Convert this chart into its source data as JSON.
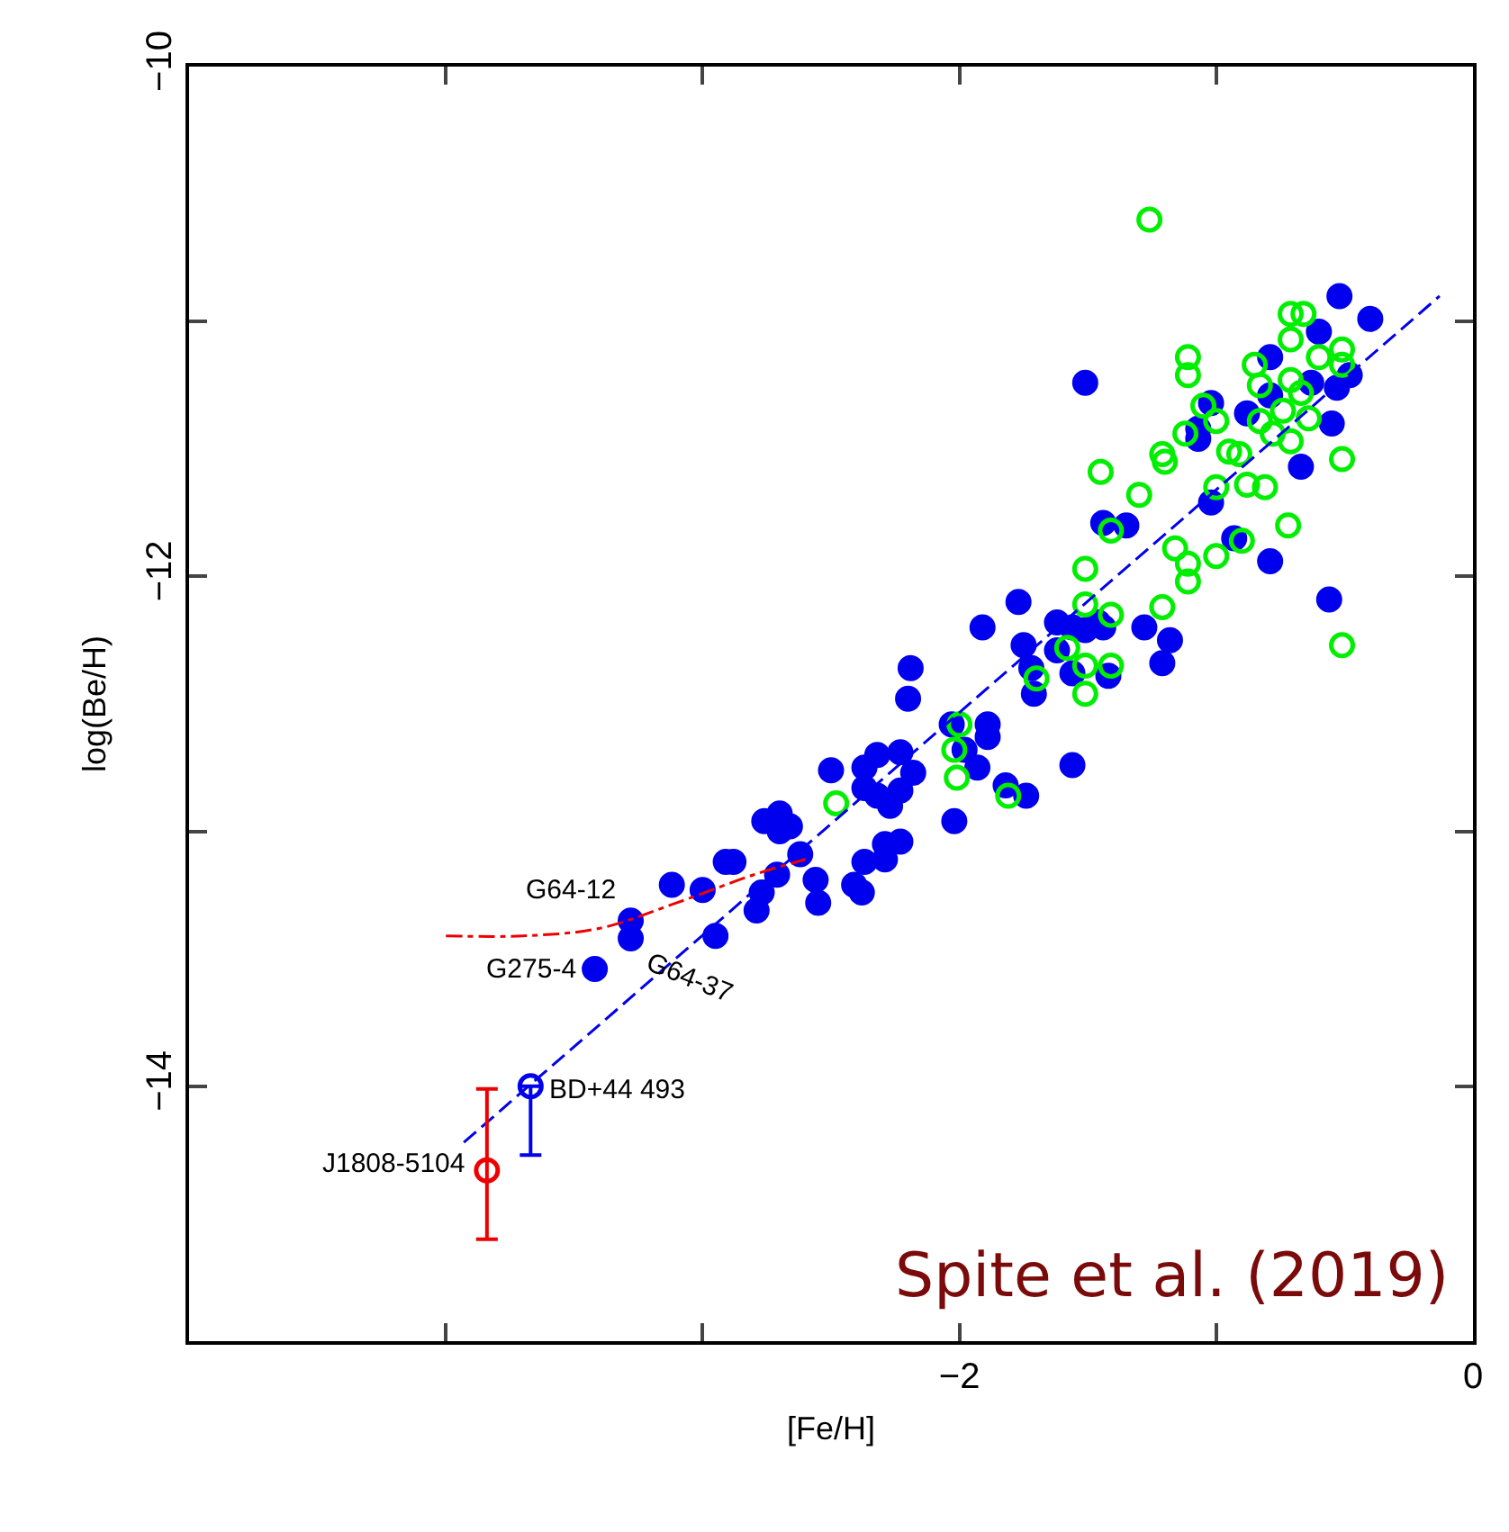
{
  "chart_data": {
    "type": "scatter",
    "xlabel": "[Fe/H]",
    "ylabel": "log(Be/H)",
    "xlim": [
      -5,
      0
    ],
    "xticks": [
      {
        "value": -4,
        "label": null
      },
      {
        "value": -3,
        "label": null
      },
      -2,
      {
        "value": -1,
        "label": null
      },
      0
    ],
    "ylim": [
      -15,
      -10
    ],
    "yticks": [
      -14,
      {
        "value": -13,
        "label": null
      },
      -12,
      {
        "value": -11,
        "label": null
      },
      -10
    ],
    "grid": false,
    "series": [
      {
        "color": "#0000ee",
        "marker": "circle",
        "x": [
          -2.2,
          -2.03,
          -1.89,
          -1.89,
          -2.5,
          -2.32,
          -2.37,
          -2.23,
          -2.18,
          -2.37,
          -2.32,
          -2.23,
          -2.27,
          -1.98,
          -1.93,
          -2.02,
          -1.82,
          -2.76,
          -2.7,
          -2.7,
          -2.66,
          -2.23,
          -2.29,
          -2.29,
          -2.37,
          -2.62,
          -2.56,
          -2.55,
          -2.41,
          -2.38,
          -2.71,
          -2.77,
          -2.79,
          -2.91,
          -2.88,
          -3.0,
          -3.12,
          -3.28,
          -3.28,
          -2.95,
          -3.42,
          -1.44,
          -1.35,
          -1.77,
          -1.91,
          -1.62,
          -1.56,
          -1.46,
          -1.51,
          -1.44,
          -1.28,
          -1.18,
          -1.21,
          -1.75,
          -1.62,
          -1.72,
          -1.56,
          -1.42,
          -1.71,
          -2.19,
          -1.56,
          -1.74,
          -1.51,
          -0.52,
          -0.4,
          -0.6,
          -0.79,
          -0.63,
          -0.53,
          -0.48,
          -0.79,
          -1.02,
          -0.88,
          -1.07,
          -1.07,
          -0.55,
          -0.67,
          -1.02,
          -0.93,
          -0.79,
          -0.56
        ],
        "values": [
          -12.48,
          -12.58,
          -12.58,
          -12.63,
          -12.76,
          -12.7,
          -12.75,
          -12.69,
          -12.77,
          -12.83,
          -12.86,
          -12.84,
          -12.9,
          -12.68,
          -12.75,
          -12.96,
          -12.82,
          -12.96,
          -12.93,
          -13.0,
          -12.98,
          -13.04,
          -13.05,
          -13.11,
          -13.12,
          -13.09,
          -13.19,
          -13.28,
          -13.21,
          -13.24,
          -13.17,
          -13.24,
          -13.31,
          -13.12,
          -13.12,
          -13.23,
          -13.21,
          -13.35,
          -13.42,
          -13.41,
          -13.54,
          -11.79,
          -11.8,
          -12.1,
          -12.2,
          -12.18,
          -12.2,
          -12.18,
          -12.21,
          -12.2,
          -12.2,
          -12.25,
          -12.34,
          -12.27,
          -12.29,
          -12.36,
          -12.38,
          -12.39,
          -12.46,
          -12.36,
          -12.74,
          -12.86,
          -11.24,
          -10.9,
          -10.99,
          -11.04,
          -11.14,
          -11.24,
          -11.26,
          -11.21,
          -11.29,
          -11.32,
          -11.36,
          -11.42,
          -11.46,
          -11.4,
          -11.57,
          -11.71,
          -11.85,
          -11.94,
          -12.09
        ]
      },
      {
        "color": "#00ee00",
        "marker": "circle-open",
        "x": [
          -1.26,
          -0.71,
          -0.66,
          -0.71,
          -0.51,
          -1.11,
          -1.11,
          -0.6,
          -0.85,
          -0.51,
          -0.71,
          -0.83,
          -0.67,
          -1.05,
          -1.0,
          -0.74,
          -0.64,
          -0.83,
          -0.78,
          -1.12,
          -1.21,
          -1.2,
          -0.95,
          -0.91,
          -0.71,
          -0.51,
          -1.45,
          -1.3,
          -1.0,
          -0.88,
          -0.81,
          -1.41,
          -0.72,
          -0.9,
          -1.16,
          -1.11,
          -1.0,
          -1.51,
          -1.11,
          -1.21,
          -1.51,
          -1.41,
          -0.51,
          -1.58,
          -1.51,
          -1.41,
          -1.7,
          -1.51,
          -2.0,
          -2.02,
          -2.01,
          -1.81,
          -2.48
        ],
        "values": [
          -10.6,
          -10.97,
          -10.97,
          -11.07,
          -11.11,
          -11.14,
          -11.21,
          -11.14,
          -11.17,
          -11.17,
          -11.23,
          -11.25,
          -11.28,
          -11.33,
          -11.39,
          -11.35,
          -11.38,
          -11.39,
          -11.44,
          -11.44,
          -11.52,
          -11.55,
          -11.51,
          -11.52,
          -11.47,
          -11.54,
          -11.59,
          -11.68,
          -11.65,
          -11.64,
          -11.65,
          -11.82,
          -11.8,
          -11.86,
          -11.89,
          -11.95,
          -11.92,
          -11.97,
          -12.02,
          -12.12,
          -12.11,
          -12.15,
          -12.27,
          -12.28,
          -12.35,
          -12.35,
          -12.4,
          -12.46,
          -12.58,
          -12.68,
          -12.79,
          -12.86,
          -12.89
        ]
      },
      {
        "type": "line",
        "color": "#0000ee",
        "marker": "none",
        "line_style": "dashed",
        "x": [
          -3.93,
          -0.13
        ],
        "values": [
          -14.22,
          -10.9
        ]
      },
      {
        "type": "line",
        "color": "#ee0000",
        "marker": "none",
        "line_style": "dashdot",
        "x": [
          -4.0,
          -3.7,
          -3.4,
          -3.1,
          -2.8,
          -2.6
        ],
        "values": [
          -13.41,
          -13.41,
          -13.38,
          -13.28,
          -13.17,
          -13.11
        ]
      },
      {
        "color": "#ee0000",
        "marker": "circle-open",
        "x": [
          -3.84
        ],
        "values": [
          -14.33
        ],
        "errors": [
          [
            -14.6,
            -14.01
          ]
        ]
      },
      {
        "color": "#0000ee",
        "marker": "circle-open",
        "x": [
          -3.67
        ],
        "values": [
          -14.0
        ],
        "errors": [
          [
            -14.27,
            -14.0
          ]
        ]
      }
    ],
    "annotations": [
      {
        "text": "G64-12",
        "x": -3.28,
        "y": -13.35
      },
      {
        "text": "G275-4",
        "x": -3.42,
        "y": -13.54
      },
      {
        "text": "G64-37",
        "x": -3.28,
        "y": -13.42
      },
      {
        "text": "BD+44 493",
        "x": -3.67,
        "y": -14.0
      },
      {
        "text": "J1808-5104",
        "x": -3.84,
        "y": -14.33
      },
      "Spite et al. (2019)"
    ]
  }
}
